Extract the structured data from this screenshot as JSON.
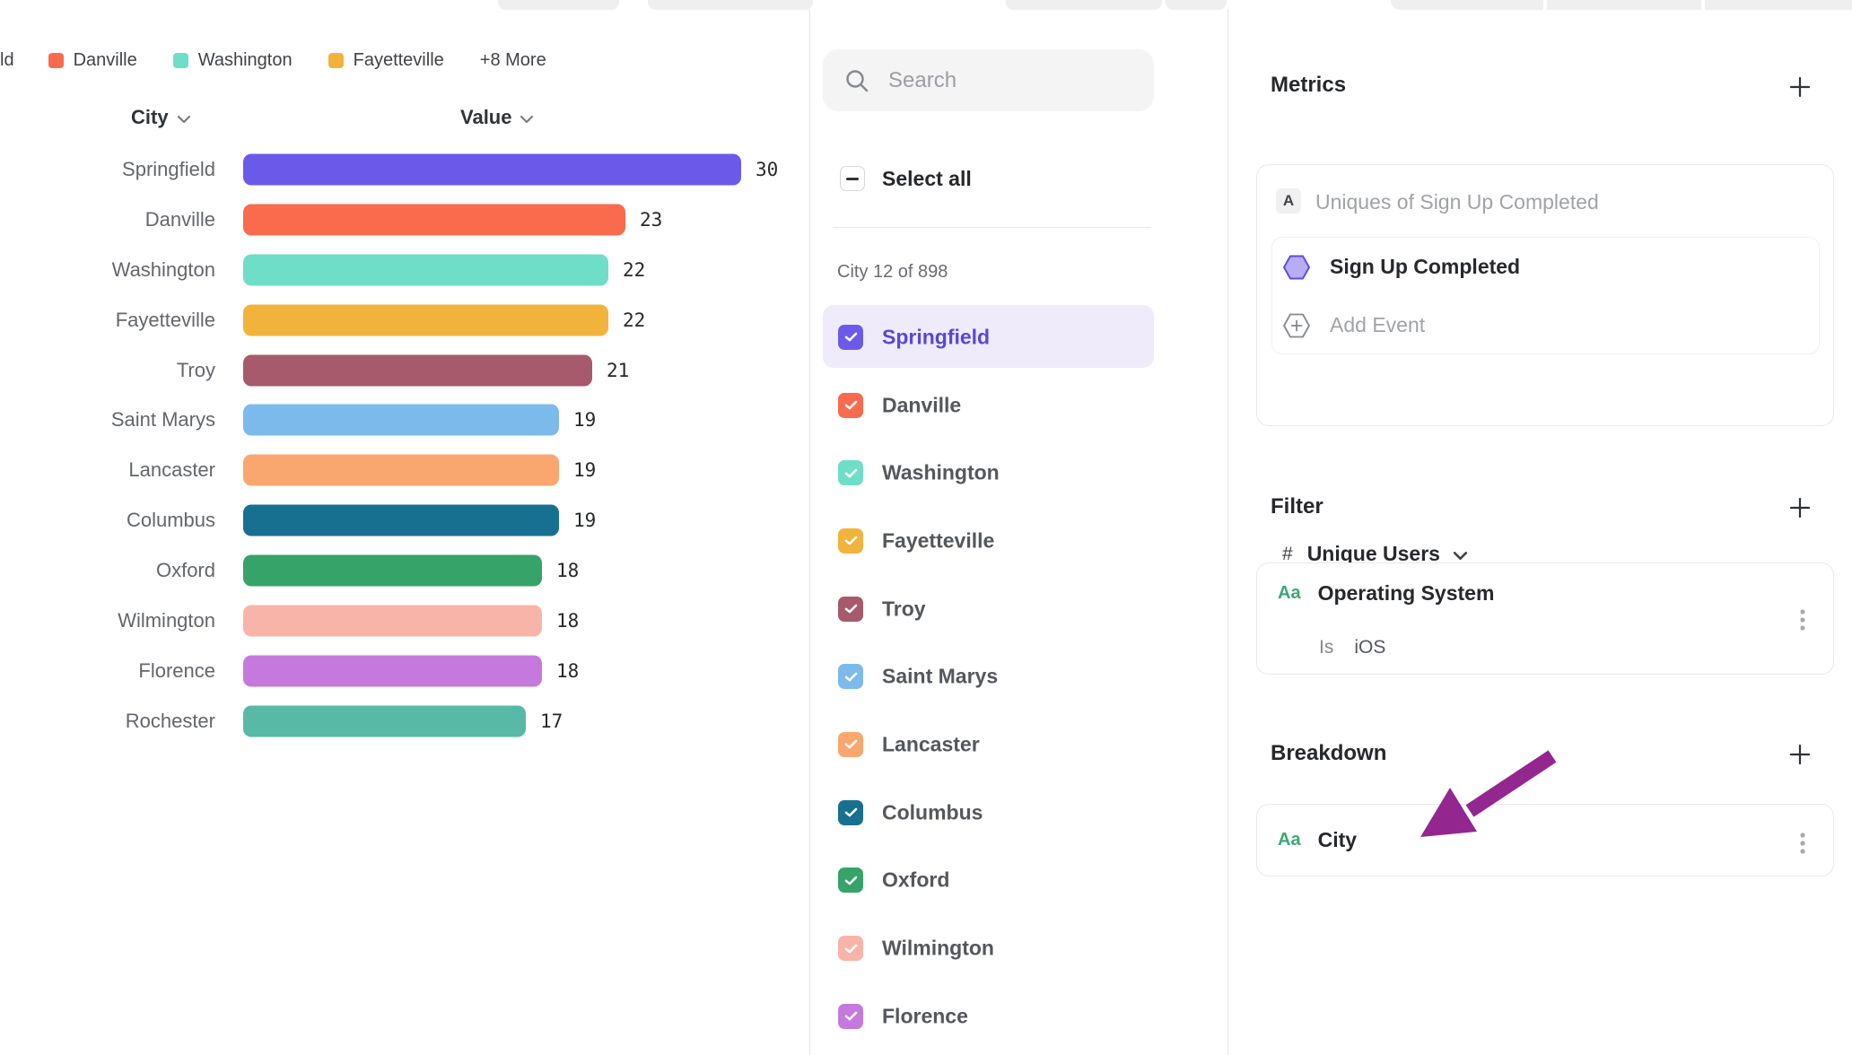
{
  "legend": {
    "clipped_fragment": "ld",
    "items": [
      {
        "label": "Danville",
        "color": "#F96B4C"
      },
      {
        "label": "Washington",
        "color": "#6FDEC8"
      },
      {
        "label": "Fayetteville",
        "color": "#F2B33D"
      }
    ],
    "more_label": "+8 More"
  },
  "chart_data": {
    "type": "bar",
    "orientation": "horizontal",
    "column_headers": {
      "category": "City",
      "value": "Value"
    },
    "categories": [
      "Springfield",
      "Danville",
      "Washington",
      "Fayetteville",
      "Troy",
      "Saint Marys",
      "Lancaster",
      "Columbus",
      "Oxford",
      "Wilmington",
      "Florence",
      "Rochester"
    ],
    "values": [
      30,
      23,
      22,
      22,
      21,
      19,
      19,
      19,
      18,
      18,
      18,
      17
    ],
    "colors": [
      "#6B5AEA",
      "#F96B4C",
      "#6FDEC8",
      "#F2B33D",
      "#A65A6B",
      "#7CBAEB",
      "#F9A76F",
      "#17708F",
      "#36A369",
      "#F9B4A9",
      "#C579DD",
      "#57B9A6"
    ],
    "xlim": [
      0,
      30
    ],
    "grid": false,
    "legend_position": "top"
  },
  "city_selector": {
    "search_placeholder": "Search",
    "select_all_label": "Select all",
    "select_all_state": "indeterminate",
    "count_label": "City 12 of 898",
    "selected_item": "Springfield",
    "items": [
      {
        "label": "Springfield",
        "color": "#6B5AEA",
        "checked": true,
        "selected": true
      },
      {
        "label": "Danville",
        "color": "#F96B4C",
        "checked": true,
        "selected": false
      },
      {
        "label": "Washington",
        "color": "#6FDEC8",
        "checked": true,
        "selected": false
      },
      {
        "label": "Fayetteville",
        "color": "#F2B33D",
        "checked": true,
        "selected": false
      },
      {
        "label": "Troy",
        "color": "#A65A6B",
        "checked": true,
        "selected": false
      },
      {
        "label": "Saint Marys",
        "color": "#7CBAEB",
        "checked": true,
        "selected": false
      },
      {
        "label": "Lancaster",
        "color": "#F9A76F",
        "checked": true,
        "selected": false
      },
      {
        "label": "Columbus",
        "color": "#17708F",
        "checked": true,
        "selected": false
      },
      {
        "label": "Oxford",
        "color": "#36A369",
        "checked": true,
        "selected": false
      },
      {
        "label": "Wilmington",
        "color": "#F9B4A9",
        "checked": true,
        "selected": false
      },
      {
        "label": "Florence",
        "color": "#C579DD",
        "checked": true,
        "selected": false
      }
    ]
  },
  "inspector": {
    "metrics": {
      "heading": "Metrics",
      "formula_badge": "A",
      "formula_label": "Uniques of Sign Up Completed",
      "event_name": "Sign Up Completed",
      "add_event_label": "Add Event",
      "measure_prefix": "#",
      "measure_label": "Unique Users"
    },
    "filter": {
      "heading": "Filter",
      "property_type": "Aa",
      "property_name": "Operating System",
      "operator": "Is",
      "value": "iOS"
    },
    "breakdown": {
      "heading": "Breakdown",
      "property_type": "Aa",
      "property_name": "City"
    }
  },
  "annotation": {
    "arrow_color": "#93278F"
  },
  "ui_colors": {
    "selected_row_bg": "#EFEBFB",
    "selected_text": "#5648D8",
    "property_type_green": "#3BA974"
  }
}
